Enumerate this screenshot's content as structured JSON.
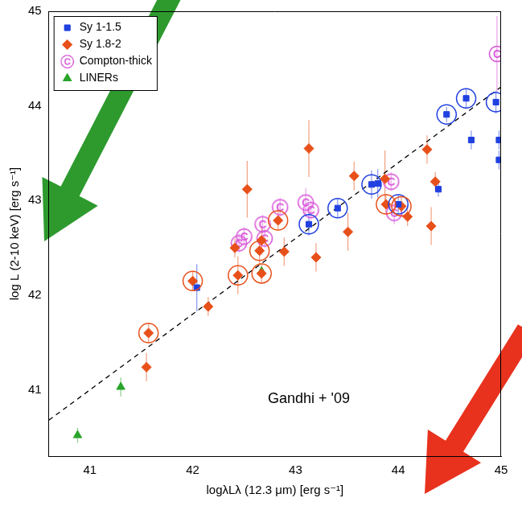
{
  "chart_data": {
    "type": "scatter",
    "xlabel": "logλLλ (12.3 μm) [erg s⁻¹]",
    "ylabel": "log L (2-10 keV) [erg s⁻¹]",
    "xlim": [
      40.6,
      45
    ],
    "ylim": [
      40.3,
      45
    ],
    "xticks": [
      41,
      42,
      43,
      44,
      45
    ],
    "yticks": [
      41,
      42,
      43,
      44,
      45
    ],
    "grid": false,
    "legend": "upper left",
    "series": [
      {
        "name": "Sy 1-1.5",
        "color": "#2040e0",
        "marker": "square",
        "x": [
          44.95,
          44.66,
          44.47,
          44.71,
          44.98,
          44.98,
          44.39,
          43.74,
          44.0,
          43.41,
          43.13,
          43.8,
          42.04
        ],
        "values": [
          44.04,
          44.08,
          43.91,
          43.64,
          43.64,
          43.43,
          43.12,
          43.17,
          42.96,
          42.92,
          42.75,
          43.18,
          42.08
        ],
        "y_err": [
          0.12,
          0.1,
          0.08,
          0.1,
          0.1,
          0.1,
          0.08,
          0.15,
          0.1,
          0.1,
          0.12,
          0.15,
          0.25
        ],
        "circled": [
          true,
          true,
          true,
          false,
          false,
          false,
          false,
          true,
          true,
          true,
          true,
          false,
          false
        ]
      },
      {
        "name": "Sy 1.8-2",
        "color": "#e8501a",
        "marker": "diamond",
        "x": [
          44.28,
          44.36,
          44.09,
          44.32,
          44.03,
          43.88,
          43.87,
          43.57,
          43.51,
          43.2,
          42.89,
          42.53,
          42.83,
          42.67,
          42.65,
          42.41,
          42.44,
          42.0,
          42.15,
          41.57,
          41.55,
          42.67,
          43.13
        ],
        "values": [
          43.54,
          43.2,
          42.83,
          42.73,
          42.94,
          42.96,
          43.23,
          43.26,
          42.67,
          42.4,
          42.46,
          43.12,
          42.79,
          42.58,
          42.47,
          42.5,
          42.21,
          42.15,
          41.88,
          41.6,
          41.24,
          42.23,
          43.55
        ],
        "y_err": [
          0.15,
          0.1,
          0.1,
          0.2,
          0.1,
          0.1,
          0.3,
          0.15,
          0.2,
          0.15,
          0.15,
          0.3,
          0.1,
          0.15,
          0.15,
          0.1,
          0.2,
          0.1,
          0.1,
          0.1,
          0.15,
          0.1,
          0.3
        ],
        "circled": [
          false,
          false,
          false,
          false,
          true,
          true,
          false,
          false,
          false,
          false,
          false,
          false,
          true,
          false,
          true,
          false,
          true,
          true,
          false,
          true,
          false,
          true,
          false
        ]
      },
      {
        "name": "Compton-thick",
        "color": "#d855d8",
        "marker": "C",
        "x": [
          44.96,
          43.93,
          43.96,
          43.1,
          43.15,
          42.85,
          42.68,
          42.5,
          42.45,
          42.7
        ],
        "values": [
          44.55,
          43.2,
          42.87,
          42.98,
          42.9,
          42.93,
          42.75,
          42.62,
          42.55,
          42.6
        ],
        "y_err": [
          0.4,
          0.1,
          0.12,
          0.15,
          0.1,
          0.1,
          0.1,
          0.1,
          0.1,
          0.1
        ]
      },
      {
        "name": "LINERs",
        "color": "#2aa52a",
        "marker": "triangle",
        "x": [
          40.88,
          41.3,
          42.67
        ],
        "values": [
          40.52,
          41.03,
          42.25
        ],
        "y_err": [
          0.08,
          0.1,
          0.05
        ]
      }
    ],
    "lines": [
      {
        "x": [
          40.6,
          45
        ],
        "values": [
          40.68,
          44.2
        ],
        "color": "#000000",
        "line_style": "dashed"
      }
    ],
    "annotations": [
      {
        "text": "Gandhi + '09",
        "x": 42.73,
        "y": 40.9
      }
    ]
  }
}
